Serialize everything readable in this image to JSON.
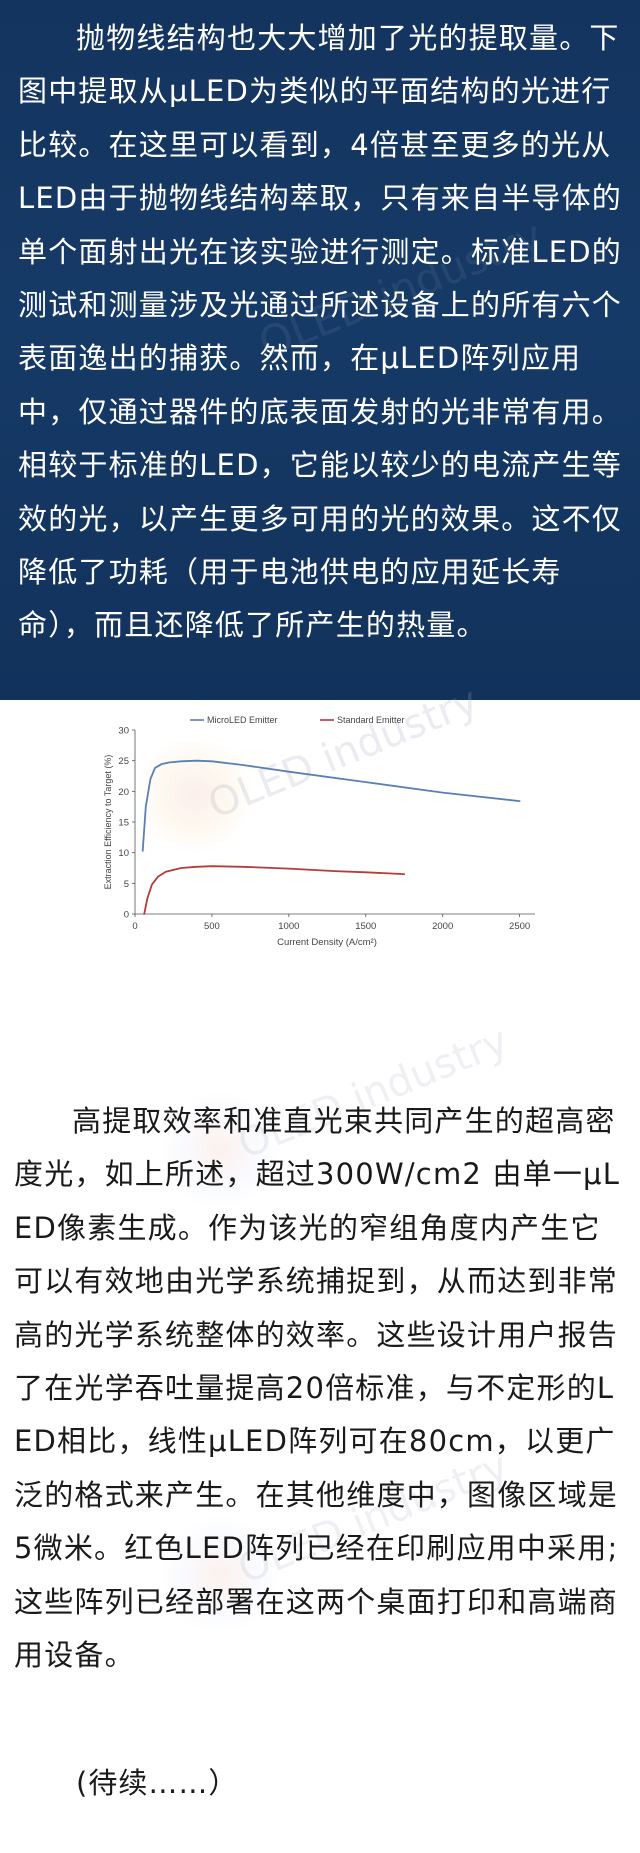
{
  "top_paragraph": "抛物线结构也大大增加了光的提取量。下图中提取从μLED为类似的平面结构的光进行比较。在这里可以看到，4倍甚至更多的光从LED由于抛物线结构萃取，只有来自半导体的单个面射出光在该实验进行测定。标准LED的测试和测量涉及光通过所述设备上的所有六个表面逸出的捕获。然而，在μLED阵列应用中，仅通过器件的底表面发射的光非常有用。相较于标准的LED，它能以较少的电流产生等效的光，以产生更多可用的光的效果。这不仅降低了功耗（用于电池供电的应用延长寿命），而且还降低了所产生的热量。",
  "watermark": "OLED industry",
  "chart_data": {
    "type": "line",
    "xlabel": "Current Density (A/cm²)",
    "ylabel": "Extraction Efficiency to Target (%)",
    "xlim": [
      0,
      2600
    ],
    "ylim": [
      0,
      30
    ],
    "x_ticks": [
      "0",
      "500",
      "1000",
      "1500",
      "2000",
      "2500"
    ],
    "y_ticks": [
      "0",
      "5",
      "10",
      "15",
      "20",
      "25",
      "30"
    ],
    "legend_position": "top",
    "grid": false,
    "series": [
      {
        "name": "MicroLED Emitter",
        "color": "#5b7fb5",
        "x": [
          50,
          70,
          100,
          130,
          170,
          220,
          300,
          400,
          500,
          700,
          1000,
          1500,
          2000,
          2500
        ],
        "y": [
          10.3,
          17.5,
          22.0,
          23.8,
          24.4,
          24.7,
          24.9,
          25.0,
          24.9,
          24.3,
          23.2,
          21.5,
          19.8,
          18.4
        ]
      },
      {
        "name": "Standard Emitter",
        "color": "#b83a3a",
        "x": [
          60,
          80,
          110,
          150,
          200,
          300,
          400,
          500,
          700,
          1000,
          1300,
          1500,
          1750
        ],
        "y": [
          0.0,
          2.5,
          4.8,
          6.1,
          6.9,
          7.5,
          7.7,
          7.8,
          7.7,
          7.4,
          7.0,
          6.8,
          6.5
        ]
      }
    ]
  },
  "bottom_paragraph": "高提取效率和准直光束共同产生的超高密度光，如上所述，超过300W/cm2 由单一μLED像素生成。作为该光的窄组角度内产生它可以有效地由光学系统捕捉到，从而达到非常高的光学系统整体的效率。这些设计用户报告了在光学吞吐量提高20倍标准，与不定形的LED相比，线性μLED阵列可在80cm，以更广泛的格式来产生。在其他维度中，图像区域是5微米。红色LED阵列已经在印刷应用中采用; 这些阵列已经部署在这两个桌面打印和高端商用设备。",
  "continued": "(待续……）"
}
